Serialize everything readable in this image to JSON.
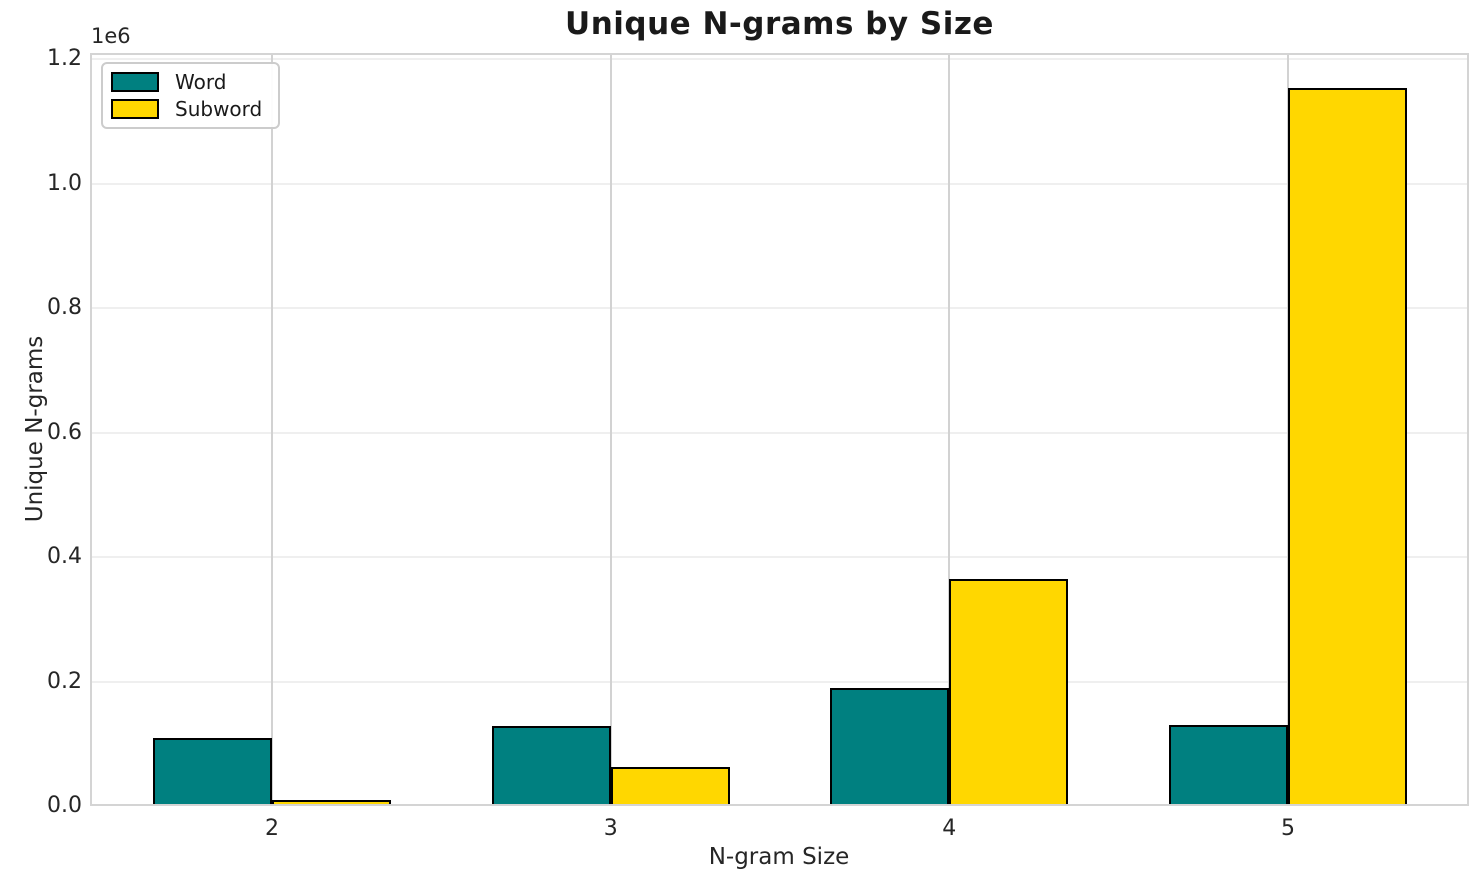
{
  "figure": {
    "title": "Unique N-grams by Size"
  },
  "chart_data": {
    "type": "bar",
    "title": "Unique N-grams by Size",
    "xlabel": "N-gram Size",
    "ylabel": "Unique N-grams",
    "categories": [
      "2",
      "3",
      "4",
      "5"
    ],
    "series": [
      {
        "name": "Word",
        "color": "#008080",
        "values": [
          110000,
          128000,
          189000,
          130000
        ]
      },
      {
        "name": "Subword",
        "color": "#FFD700",
        "values": [
          9000,
          62000,
          364000,
          1154000
        ]
      }
    ],
    "ylim": [
      0,
      1210000
    ],
    "yticks": [
      0,
      200000,
      400000,
      600000,
      800000,
      1000000,
      1200000
    ],
    "ytick_labels": [
      "0.0",
      "0.2",
      "0.4",
      "0.6",
      "0.8",
      "1.0",
      "1.2"
    ],
    "y_offset_label": "1e6",
    "bar_edge_color": "#000000",
    "grid": true,
    "legend_position": "upper left"
  }
}
